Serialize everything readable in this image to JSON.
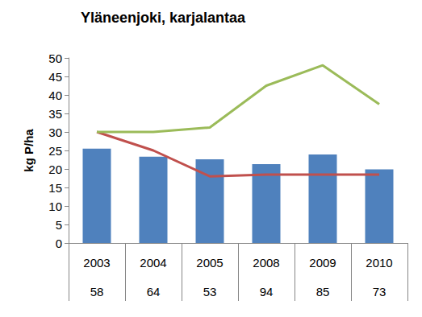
{
  "chart_data": {
    "type": "bar",
    "title": "Yläneenjoki, karjalantaa",
    "y_label": "kg P/ha",
    "categories": [
      "2003",
      "2004",
      "2005",
      "2008",
      "2009",
      "2010"
    ],
    "category_sublabels": [
      58,
      64,
      53,
      94,
      85,
      73
    ],
    "series": [
      {
        "type": "bar",
        "color": "#4f81bd",
        "values": [
          25.5,
          23.3,
          22.6,
          21.3,
          23.9,
          19.9
        ]
      },
      {
        "type": "line",
        "color": "#c0504d",
        "marker": "none",
        "values": [
          30,
          25,
          18,
          18.5,
          18.5,
          18.5
        ]
      },
      {
        "type": "line",
        "color": "#9bbb59",
        "marker": "none",
        "values": [
          30,
          30,
          31.2,
          42.5,
          48,
          37.5
        ]
      }
    ],
    "ylim": [
      0,
      50
    ],
    "yticks": [
      0,
      5,
      10,
      15,
      20,
      25,
      30,
      35,
      40,
      45,
      50
    ],
    "grid": false
  }
}
